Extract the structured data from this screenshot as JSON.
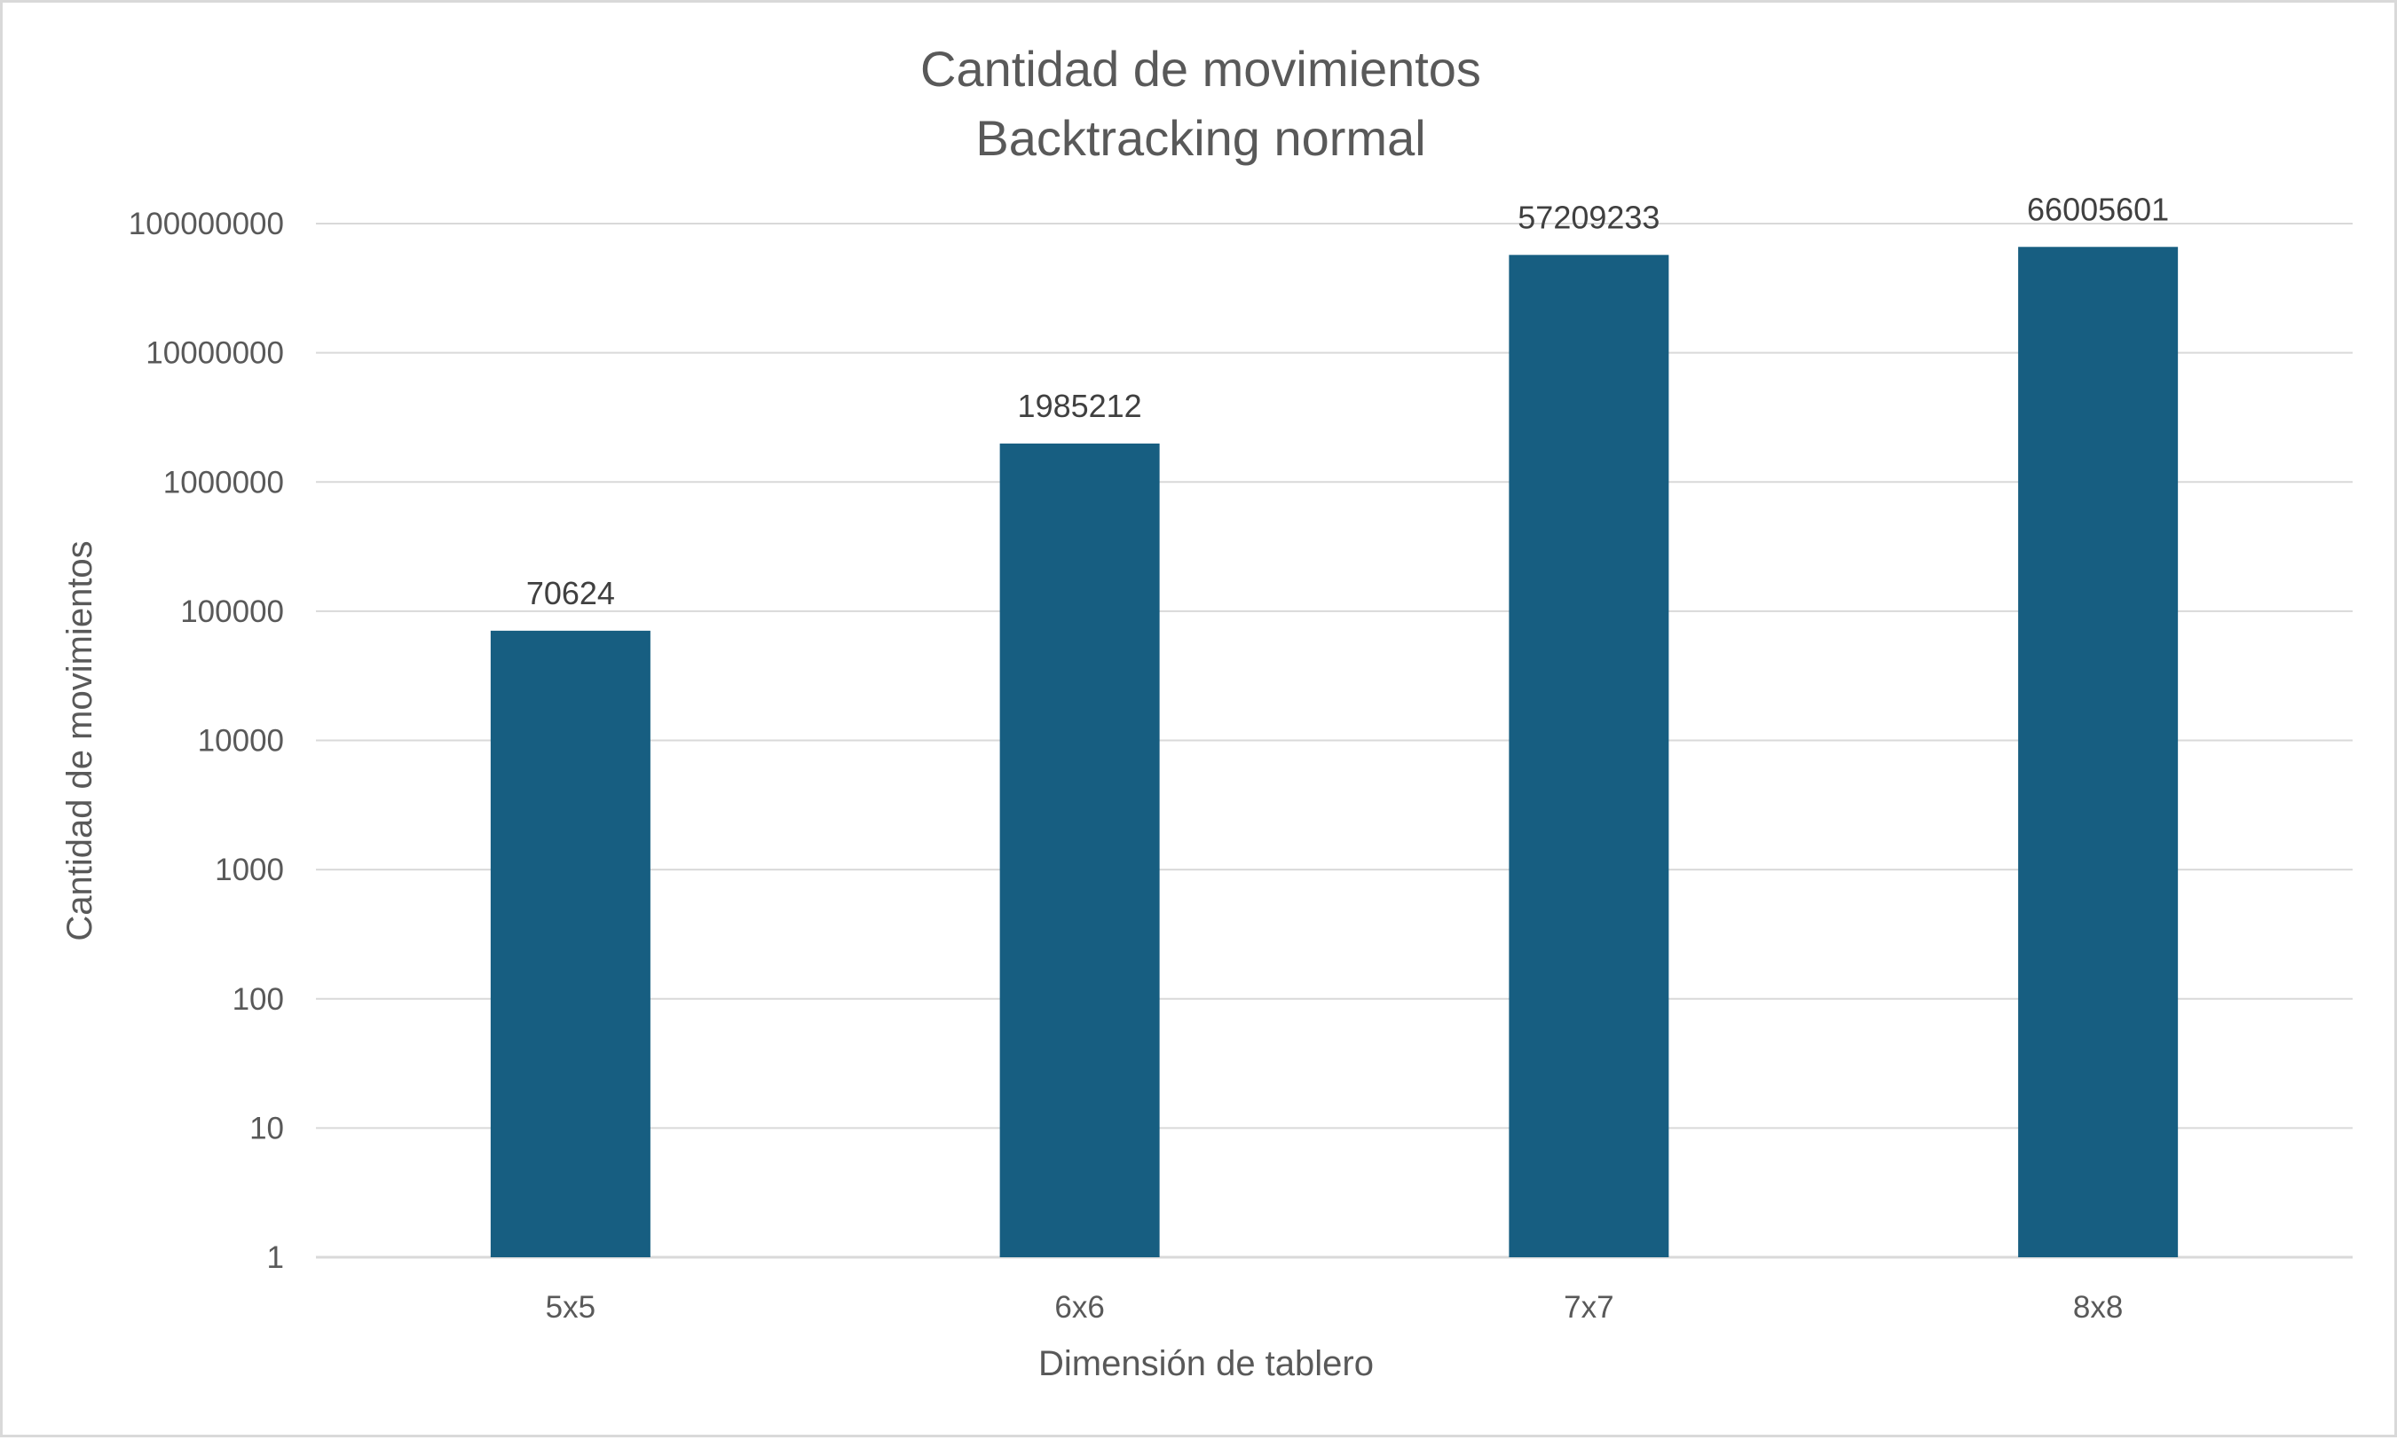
{
  "chart_data": {
    "type": "bar",
    "title": "Cantidad de movimientos",
    "subtitle": "Backtracking normal",
    "xlabel": "Dimensión de tablero",
    "ylabel": "Cantidad de movimientos",
    "categories": [
      "5x5",
      "6x6",
      "7x7",
      "8x8"
    ],
    "values": [
      70624,
      1985212,
      57209233,
      66005601
    ],
    "data_labels": [
      "70624",
      "1985212",
      "57209233",
      "66005601"
    ],
    "y_scale": "log",
    "ylim": [
      1,
      100000000
    ],
    "y_ticks": [
      "1",
      "10",
      "100",
      "1000",
      "10000",
      "100000",
      "1000000",
      "10000000",
      "100000000"
    ],
    "grid": true,
    "legend": "none",
    "bar_color": "#175e81"
  }
}
